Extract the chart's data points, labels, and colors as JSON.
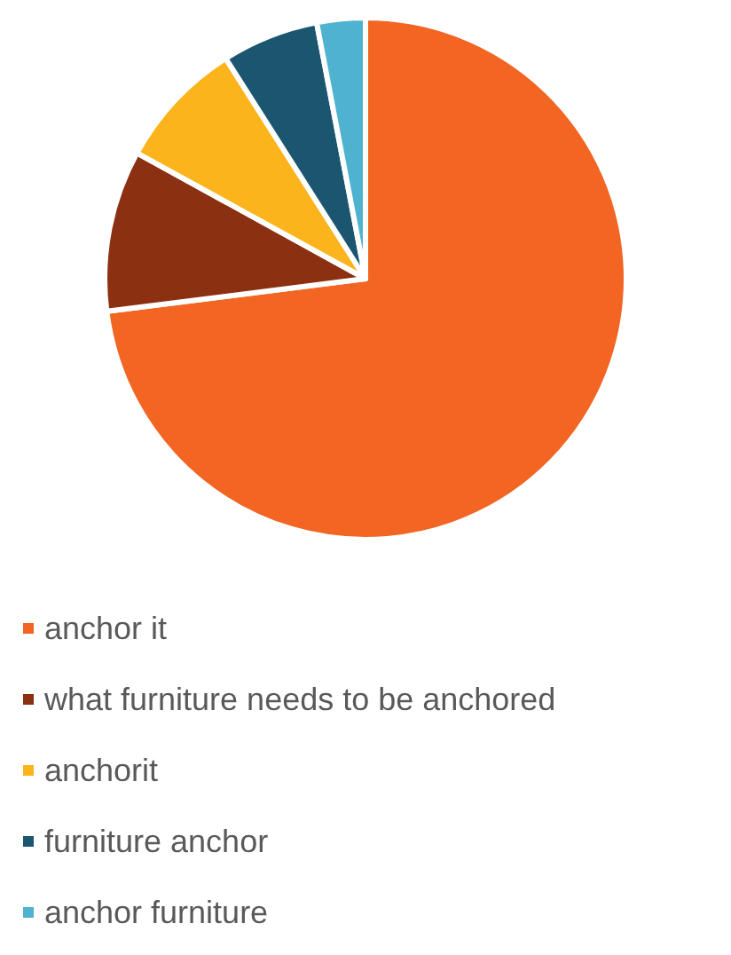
{
  "chart_data": {
    "type": "pie",
    "categories": [
      "anchor it",
      "what furniture needs to be anchored",
      "anchorit",
      "furniture anchor",
      "anchor furniture"
    ],
    "values": [
      73,
      10,
      8,
      6,
      3
    ],
    "colors": [
      "#f26522",
      "#8b3010",
      "#fbb41c",
      "#1b5671",
      "#4fb3cf"
    ],
    "legend": "bottom"
  }
}
